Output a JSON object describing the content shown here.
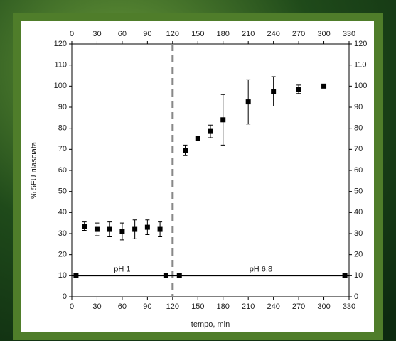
{
  "chart_data": {
    "type": "scatter",
    "x_label": "tempo, min",
    "y_label": "% 5FU rilasciata",
    "series": [
      {
        "color": "#000000",
        "x": [
          15,
          30,
          45,
          60,
          75,
          90,
          105,
          135,
          150,
          165,
          180,
          210,
          240,
          270,
          300
        ],
        "values": [
          33.5,
          32,
          32,
          31,
          32,
          33,
          32,
          69.5,
          75,
          78.5,
          84,
          92.5,
          97.5,
          98.5,
          100
        ],
        "errors": [
          2,
          3,
          3.5,
          4,
          4.5,
          3.5,
          3.5,
          2.5,
          1,
          3,
          12,
          10.5,
          7,
          2,
          0
        ]
      },
      {
        "color": "#000000",
        "x": [
          5,
          112,
          128,
          325
        ],
        "values": [
          10,
          10,
          10,
          10
        ]
      }
    ],
    "annotations": [
      "pH 1",
      "pH 6.8"
    ],
    "vline": 120,
    "xlim": [
      0,
      330
    ],
    "xticks": [
      0,
      30,
      60,
      90,
      120,
      150,
      180,
      210,
      240,
      270,
      300,
      330
    ],
    "ylim": [
      0,
      120
    ],
    "yticks": [
      0,
      10,
      20,
      30,
      40,
      50,
      60,
      70,
      80,
      90,
      100,
      110,
      120
    ]
  }
}
